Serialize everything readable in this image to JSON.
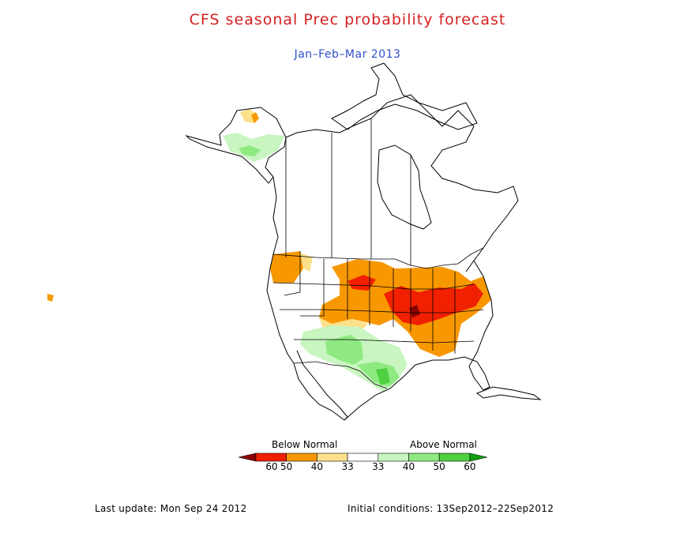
{
  "title": "CFS seasonal Prec probability forecast",
  "subtitle": "Jan–Feb–Mar 2013",
  "colors": {
    "title": "#d62020",
    "subtitle": "#3050d0",
    "outline": "#000000"
  },
  "legend": {
    "below_label": "Below Normal",
    "above_label": "Above Normal",
    "bins": [
      {
        "color": "#8b0000",
        "tick": "60"
      },
      {
        "color": "#f02000",
        "tick": "50"
      },
      {
        "color": "#f89800",
        "tick": "40"
      },
      {
        "color": "#fde08a",
        "tick": "33"
      },
      {
        "color": "#ffffff",
        "tick": "33"
      },
      {
        "color": "#c8f5c0",
        "tick": "40"
      },
      {
        "color": "#8eea80",
        "tick": "50"
      },
      {
        "color": "#4ed040",
        "tick": "60"
      },
      {
        "color": "#10a010",
        "tick": ""
      }
    ]
  },
  "footer": {
    "last_update": "Last update: Mon Sep 24 2012",
    "initial_conditions": "Initial conditions: 13Sep2012–22Sep2012"
  }
}
